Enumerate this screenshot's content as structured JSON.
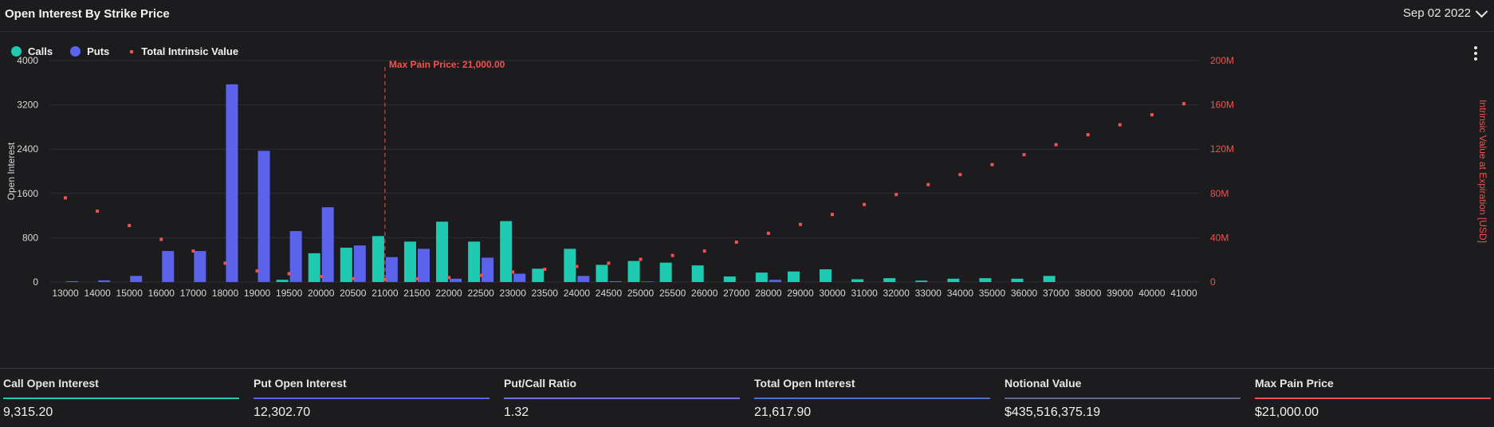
{
  "header": {
    "title": "Open Interest By Strike Price",
    "date": "Sep 02 2022"
  },
  "legend": {
    "calls": "Calls",
    "puts": "Puts",
    "intrinsic": "Total Intrinsic Value"
  },
  "colors": {
    "calls": "#1ecbb2",
    "puts": "#5b63ea",
    "intrinsic": "#ef5350",
    "background": "#1c1c1e"
  },
  "icons": [
    "chevron-down-icon",
    "kebab-menu-icon"
  ],
  "chart_data": {
    "type": "bar",
    "ylabel": "Open Interest",
    "y2label": "Intrinsic Value at Expiration [USD]",
    "ylim": [
      0,
      4000
    ],
    "yticks": [
      "0",
      "800",
      "1600",
      "2400",
      "3200",
      "4000"
    ],
    "y2lim": [
      0,
      200
    ],
    "y2ticks": [
      "0",
      "40M",
      "80M",
      "120M",
      "160M",
      "200M"
    ],
    "categories": [
      "13000",
      "14000",
      "15000",
      "16000",
      "17000",
      "18000",
      "19000",
      "19500",
      "20000",
      "20500",
      "21000",
      "21500",
      "22000",
      "22500",
      "23000",
      "23500",
      "24000",
      "24500",
      "25000",
      "25500",
      "26000",
      "27000",
      "28000",
      "29000",
      "30000",
      "31000",
      "32000",
      "33000",
      "34000",
      "35000",
      "36000",
      "37000",
      "38000",
      "39000",
      "40000",
      "41000"
    ],
    "series": [
      {
        "name": "Calls",
        "type": "bar",
        "values": [
          0,
          0,
          0,
          0,
          0,
          0,
          0,
          40,
          520,
          620,
          830,
          730,
          1090,
          730,
          1100,
          240,
          600,
          310,
          380,
          350,
          300,
          100,
          170,
          190,
          230,
          50,
          70,
          25,
          60,
          70,
          60,
          110,
          0,
          0,
          0,
          0
        ]
      },
      {
        "name": "Puts",
        "type": "bar",
        "values": [
          15,
          30,
          110,
          560,
          560,
          3570,
          2370,
          920,
          1350,
          660,
          450,
          600,
          60,
          440,
          150,
          0,
          110,
          15,
          10,
          0,
          0,
          0,
          40,
          0,
          0,
          0,
          0,
          0,
          0,
          0,
          0,
          0,
          0,
          0,
          0,
          0
        ]
      },
      {
        "name": "Total Intrinsic Value",
        "type": "scatter",
        "axis": "right",
        "values": [
          76,
          64,
          51,
          38.5,
          28,
          17,
          10,
          7.5,
          5,
          3,
          2.2,
          2.8,
          4,
          6,
          9,
          11.5,
          14,
          17,
          20.5,
          24,
          28,
          36,
          44,
          52,
          61,
          70,
          79,
          88,
          97,
          106,
          115,
          124,
          133,
          142,
          151,
          161
        ]
      }
    ],
    "annotation": {
      "label": "Max Pain Price: 21,000.00",
      "at": "21000"
    },
    "grid": "horizontal",
    "legend_position": "top-left"
  },
  "stats": [
    {
      "label": "Call Open Interest",
      "value": "9,315.20",
      "color": "#1ecbb2"
    },
    {
      "label": "Put Open Interest",
      "value": "12,302.70",
      "color": "#5b63ea"
    },
    {
      "label": "Put/Call Ratio",
      "value": "1.32",
      "color": "#6e74d6"
    },
    {
      "label": "Total Open Interest",
      "value": "21,617.90",
      "color": "#4a73c8"
    },
    {
      "label": "Notional Value",
      "value": "$435,516,375.19",
      "color": "#5c6b86"
    },
    {
      "label": "Max Pain Price",
      "value": "$21,000.00",
      "color": "#ef5350"
    }
  ]
}
